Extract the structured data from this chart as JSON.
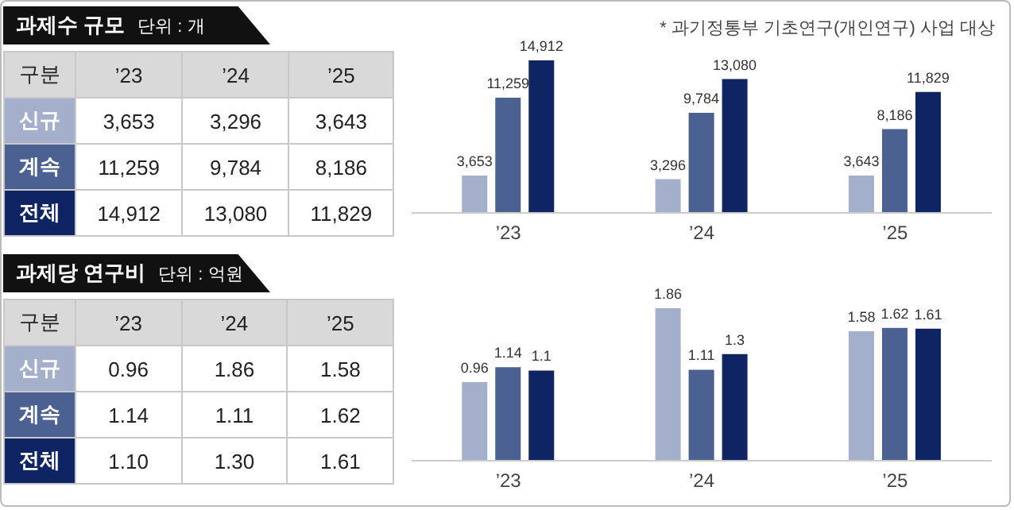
{
  "chart_data": [
    {
      "type": "other",
      "title": "과제수 규모",
      "subtitle": "단위 : 개",
      "legend_title": "구분",
      "categories": [
        "’23",
        "’24",
        "’25"
      ],
      "series": [
        {
          "name": "신규",
          "values": [
            3653,
            3296,
            3643
          ],
          "value_labels": [
            "3,653",
            "3,296",
            "3,643"
          ]
        },
        {
          "name": "계속",
          "values": [
            11259,
            9784,
            8186
          ],
          "value_labels": [
            "11,259",
            "9,784",
            "8,186"
          ]
        },
        {
          "name": "전체",
          "values": [
            14912,
            13080,
            11829
          ],
          "value_labels": [
            "14,912",
            "13,080",
            "11,829"
          ]
        }
      ]
    },
    {
      "type": "bar",
      "categories": [
        "’23",
        "’24",
        "’25"
      ],
      "annotations": [
        "* 과기정통부 기초연구(개인연구) 사업 대상"
      ],
      "series": [
        {
          "color": "#a3afcb",
          "values": [
            3653,
            3296,
            3643
          ],
          "value_labels": [
            "3,653",
            "3,296",
            "3,643"
          ]
        },
        {
          "color": "#4b6191",
          "values": [
            11259,
            9784,
            8186
          ],
          "value_labels": [
            "11,259",
            "9,784",
            "8,186"
          ]
        },
        {
          "color": "#0f2462",
          "values": [
            14912,
            13080,
            11829
          ],
          "value_labels": [
            "14,912",
            "13,080",
            "11,829"
          ]
        }
      ]
    },
    {
      "type": "other",
      "title": "과제당 연구비",
      "subtitle": "단위 : 억원",
      "legend_title": "구분",
      "categories": [
        "’23",
        "’24",
        "’25"
      ],
      "series": [
        {
          "name": "신규",
          "values": [
            0.96,
            1.86,
            1.58
          ],
          "value_labels": [
            "0.96",
            "1.86",
            "1.58"
          ]
        },
        {
          "name": "계속",
          "values": [
            1.14,
            1.11,
            1.62
          ],
          "value_labels": [
            "1.14",
            "1.11",
            "1.62"
          ]
        },
        {
          "name": "전체",
          "values": [
            1.1,
            1.3,
            1.61
          ],
          "value_labels": [
            "1.10",
            "1.30",
            "1.61"
          ]
        }
      ]
    },
    {
      "type": "bar",
      "categories": [
        "’23",
        "’24",
        "’25"
      ],
      "series": [
        {
          "color": "#a3afcb",
          "values": [
            0.96,
            1.86,
            1.58
          ],
          "value_labels": [
            "0.96",
            "1.86",
            "1.58"
          ]
        },
        {
          "color": "#4b6191",
          "values": [
            1.14,
            1.11,
            1.62
          ],
          "value_labels": [
            "1.14",
            "1.11",
            "1.62"
          ]
        },
        {
          "color": "#0f2462",
          "values": [
            1.1,
            1.3,
            1.61
          ],
          "value_labels": [
            "1.1",
            "1.3",
            "1.61"
          ]
        }
      ]
    }
  ]
}
